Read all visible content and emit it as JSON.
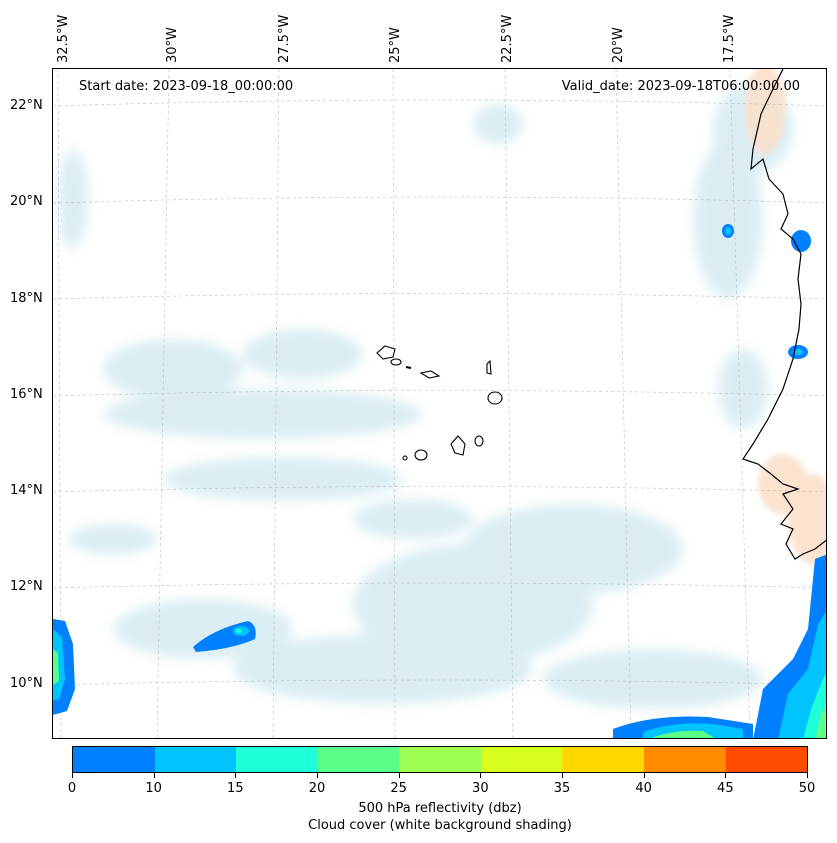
{
  "map": {
    "start_date": "Start date: 2023-09-18_00:00:00",
    "valid_date": "Valid_date: 2023-09-18T06:00:00.00",
    "lon_labels": [
      "32.5°W",
      "30°W",
      "27.5°W",
      "25°W",
      "22.5°W",
      "20°W",
      "17.5°W"
    ],
    "lat_labels": [
      "22°N",
      "20°N",
      "18°N",
      "16°N",
      "14°N",
      "12°N",
      "10°N"
    ],
    "gridlines": "dashed"
  },
  "colorbar": {
    "ticks": [
      "0",
      "10",
      "15",
      "20",
      "25",
      "30",
      "35",
      "40",
      "45",
      "50"
    ],
    "colors": [
      "#0080ff",
      "#00c4ff",
      "#1effd8",
      "#5aff8a",
      "#9cff52",
      "#d6ff1e",
      "#ffd800",
      "#ff8c00",
      "#ff4a00"
    ],
    "label_line1": "500 hPa reflectivity (dbz)",
    "label_line2": "Cloud cover (white background shading)"
  }
}
